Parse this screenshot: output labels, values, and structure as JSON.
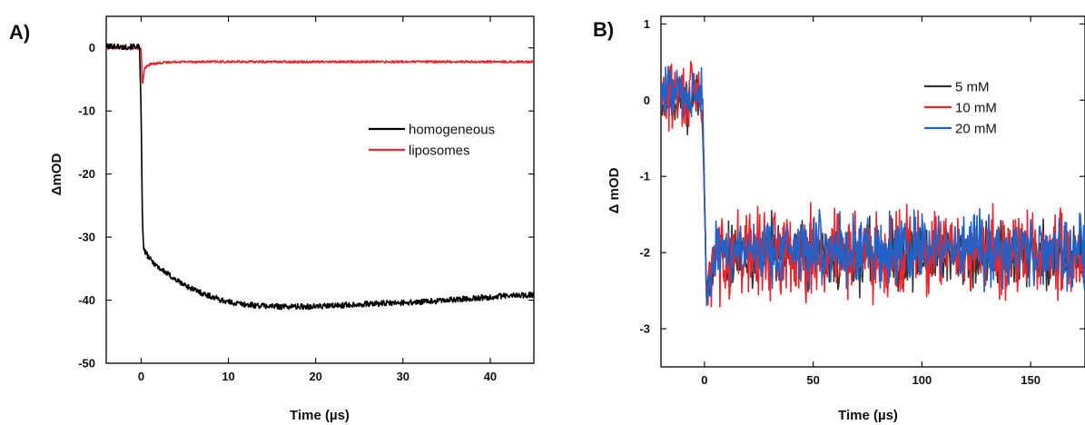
{
  "chart_data": [
    {
      "panel_label": "A)",
      "type": "line",
      "xlabel": "Time (µs)",
      "ylabel": "ΔmOD",
      "xlim": [
        -4,
        45
      ],
      "ylim": [
        -50,
        5
      ],
      "xticks": [
        0,
        10,
        20,
        30,
        40
      ],
      "yticks": [
        0,
        -10,
        -20,
        -30,
        -40,
        -50
      ],
      "grid": false,
      "legend": "center-right",
      "series": [
        {
          "name": "homogeneous",
          "color": "#000000",
          "x": [
            -4,
            -3,
            -2,
            -1,
            -0.5,
            -0.2,
            0,
            0.15,
            0.3,
            1,
            2,
            3,
            4,
            5,
            6,
            7,
            8,
            9,
            10,
            12,
            14,
            16,
            18,
            20,
            22,
            24,
            26,
            28,
            30,
            32,
            34,
            36,
            38,
            40,
            42,
            44,
            45
          ],
          "y": [
            0.2,
            0.3,
            0.1,
            0.2,
            0.3,
            0.0,
            -10,
            -28,
            -32,
            -33.5,
            -34.8,
            -35.8,
            -36.8,
            -37.6,
            -38.3,
            -38.9,
            -39.4,
            -39.9,
            -40.3,
            -40.7,
            -40.9,
            -41.0,
            -41.0,
            -41.0,
            -40.9,
            -40.7,
            -40.6,
            -40.5,
            -40.4,
            -40.3,
            -40.1,
            -39.9,
            -39.7,
            -39.5,
            -39.3,
            -39.2,
            -39.1
          ]
        },
        {
          "name": "liposomes",
          "color": "#e0282e",
          "x": [
            -4,
            -2,
            -0.5,
            0,
            0.15,
            0.4,
            1,
            2,
            4,
            8,
            15,
            25,
            35,
            45
          ],
          "y": [
            0.0,
            0.0,
            0.0,
            -0.2,
            -6.0,
            -3.2,
            -2.6,
            -2.4,
            -2.2,
            -2.2,
            -2.2,
            -2.2,
            -2.2,
            -2.2
          ]
        }
      ]
    },
    {
      "panel_label": "B)",
      "type": "line",
      "xlabel": "Time (µs)",
      "ylabel": "Δ mOD",
      "xlim": [
        -20,
        175
      ],
      "ylim": [
        -3.5,
        1.1
      ],
      "xticks": [
        0,
        50,
        100,
        150
      ],
      "yticks": [
        1,
        0,
        -1,
        -2,
        -3
      ],
      "grid": false,
      "legend": "top-right",
      "series": [
        {
          "name": "5 mM",
          "color": "#333333",
          "seed": 11,
          "pre_mean": 0.0,
          "pre_noise": 0.22,
          "post_mean": -2.05,
          "post_noise": 0.28
        },
        {
          "name": "10 mM",
          "color": "#e8262e",
          "seed": 29,
          "pre_mean": 0.05,
          "pre_noise": 0.3,
          "post_mean": -2.0,
          "post_noise": 0.36
        },
        {
          "name": "20 mM",
          "color": "#1f62c9",
          "seed": 47,
          "pre_mean": 0.1,
          "pre_noise": 0.22,
          "post_mean": -1.95,
          "post_noise": 0.3
        }
      ]
    }
  ]
}
